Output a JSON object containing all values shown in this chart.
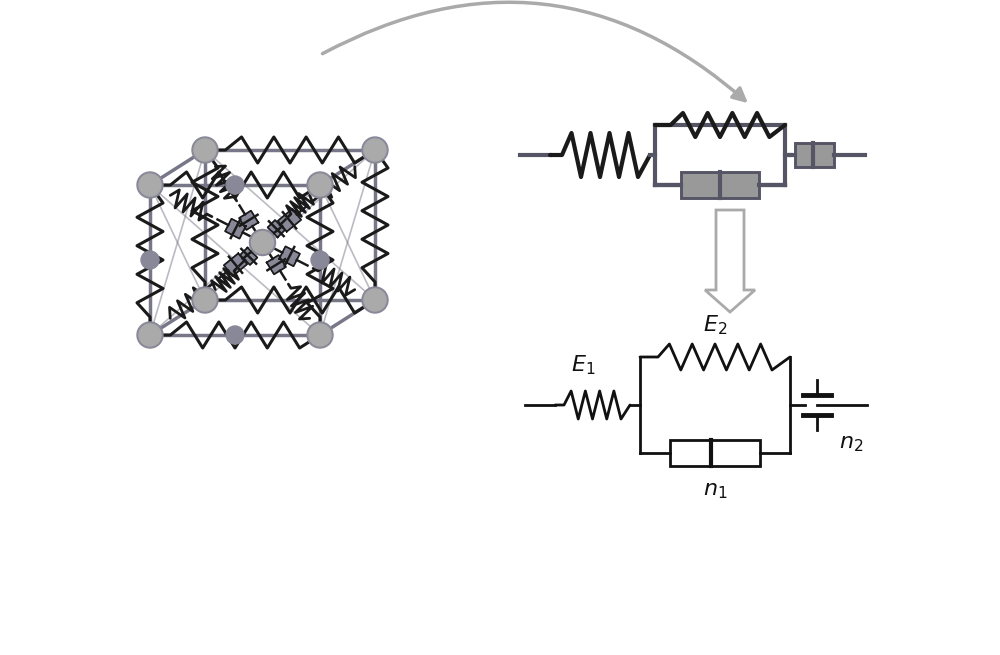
{
  "bg_color": "#ffffff",
  "node_color": "#888899",
  "cube_edge_color": "#777788",
  "spring_3d_color": "#1a1a1a",
  "dashpot_3d_color": "#888899",
  "circuit_color": "#111111",
  "arrow_gray": "#aaaaaa",
  "label_fontsize": 16,
  "cube_lw": 2.0,
  "spring_3d_lw": 2.2,
  "circuit_lw": 2.0,
  "model3d_color": "#555566",
  "model3d_lw": 3.0
}
